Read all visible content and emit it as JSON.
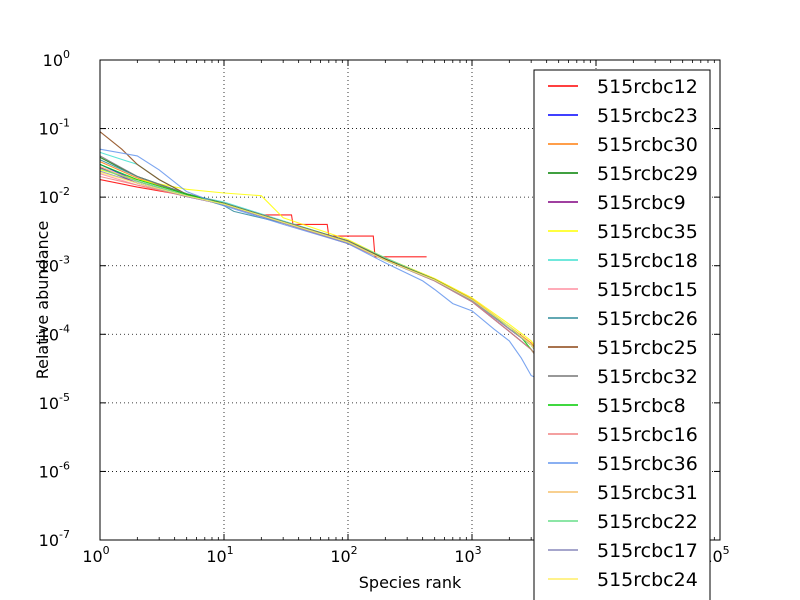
{
  "chart_data": {
    "type": "line",
    "title": "",
    "xlabel": "Species rank",
    "ylabel": "Relative abundance",
    "xscale": "log",
    "yscale": "log",
    "xlim": [
      1,
      100000
    ],
    "ylim": [
      1e-07,
      1
    ],
    "grid": true,
    "legend_position": "right",
    "x_ticks": [
      {
        "value": 1,
        "base": "10",
        "exp": "0"
      },
      {
        "value": 10,
        "base": "10",
        "exp": "1"
      },
      {
        "value": 100,
        "base": "10",
        "exp": "2"
      },
      {
        "value": 1000,
        "base": "10",
        "exp": "3"
      },
      {
        "value": 10000,
        "base": "10",
        "exp": "4"
      },
      {
        "value": 100000,
        "base": "10",
        "exp": "5"
      }
    ],
    "y_ticks": [
      {
        "value": 1,
        "base": "10",
        "exp": "0"
      },
      {
        "value": 0.1,
        "base": "10",
        "exp": "-1"
      },
      {
        "value": 0.01,
        "base": "10",
        "exp": "-2"
      },
      {
        "value": 0.001,
        "base": "10",
        "exp": "-3"
      },
      {
        "value": 0.0001,
        "base": "10",
        "exp": "-4"
      },
      {
        "value": 1e-05,
        "base": "10",
        "exp": "-5"
      },
      {
        "value": 1e-06,
        "base": "10",
        "exp": "-6"
      },
      {
        "value": 1e-07,
        "base": "10",
        "exp": "-7"
      }
    ],
    "series": [
      {
        "name": "515rcbc12",
        "color": "#ff0000",
        "points": [
          [
            1,
            0.018
          ],
          [
            2,
            0.014
          ],
          [
            5,
            0.0105
          ],
          [
            10,
            0.008
          ],
          [
            20,
            0.0055
          ],
          [
            35,
            0.0055
          ],
          [
            36,
            0.004
          ],
          [
            68,
            0.004
          ],
          [
            70,
            0.0027
          ],
          [
            160,
            0.0027
          ],
          [
            165,
            0.00135
          ],
          [
            430,
            0.00135
          ]
        ]
      },
      {
        "name": "515rcbc23",
        "color": "#0000ff",
        "points": [
          [
            1,
            0.03
          ],
          [
            2,
            0.017
          ],
          [
            5,
            0.0105
          ],
          [
            10,
            0.0078
          ],
          [
            30,
            0.0042
          ],
          [
            100,
            0.0022
          ],
          [
            200,
            0.0012
          ],
          [
            500,
            0.00062
          ],
          [
            1000,
            0.00031
          ],
          [
            2000,
            0.00012
          ],
          [
            3000,
            7e-05
          ],
          [
            4000,
            3.5e-05
          ],
          [
            4500,
            2.2e-05
          ]
        ]
      },
      {
        "name": "515rcbc30",
        "color": "#ff7f0e",
        "points": [
          [
            1,
            0.033
          ],
          [
            2,
            0.019
          ],
          [
            5,
            0.011
          ],
          [
            10,
            0.0081
          ],
          [
            30,
            0.0043
          ],
          [
            100,
            0.0023
          ],
          [
            200,
            0.0013
          ],
          [
            500,
            0.00064
          ],
          [
            1000,
            0.00033
          ],
          [
            2000,
            0.00013
          ],
          [
            3000,
            7.5e-05
          ],
          [
            4000,
            3.8e-05
          ],
          [
            4600,
            2.4e-05
          ]
        ]
      },
      {
        "name": "515rcbc29",
        "color": "#008000",
        "points": [
          [
            1,
            0.038
          ],
          [
            2,
            0.02
          ],
          [
            5,
            0.0112
          ],
          [
            10,
            0.0082
          ],
          [
            30,
            0.0044
          ],
          [
            100,
            0.0023
          ],
          [
            200,
            0.00125
          ],
          [
            500,
            0.00063
          ],
          [
            1000,
            0.00032
          ],
          [
            2000,
            0.00012
          ],
          [
            3000,
            7e-05
          ],
          [
            4000,
            3.6e-05
          ],
          [
            4800,
            2.3e-05
          ]
        ]
      },
      {
        "name": "515rcbc9",
        "color": "#800080",
        "points": [
          [
            1,
            0.027
          ],
          [
            2,
            0.016
          ],
          [
            5,
            0.0102
          ],
          [
            10,
            0.0078
          ],
          [
            30,
            0.0042
          ],
          [
            100,
            0.0021
          ],
          [
            200,
            0.0012
          ],
          [
            500,
            0.0006
          ],
          [
            1000,
            0.0003
          ],
          [
            2000,
            0.00011
          ],
          [
            3000,
            6e-05
          ],
          [
            4000,
            3e-05
          ],
          [
            4500,
            2e-05
          ]
        ]
      },
      {
        "name": "515rcbc35",
        "color": "#ffff00",
        "points": [
          [
            1,
            0.025
          ],
          [
            2,
            0.018
          ],
          [
            5,
            0.013
          ],
          [
            10,
            0.0115
          ],
          [
            20,
            0.0105
          ],
          [
            30,
            0.005
          ],
          [
            100,
            0.0024
          ],
          [
            200,
            0.0013
          ],
          [
            500,
            0.00065
          ],
          [
            1000,
            0.00034
          ],
          [
            2000,
            0.00014
          ],
          [
            3000,
            8e-05
          ],
          [
            4000,
            4e-05
          ],
          [
            4800,
            2.5e-05
          ]
        ]
      },
      {
        "name": "515rcbc18",
        "color": "#40e0d0",
        "points": [
          [
            1,
            0.045
          ],
          [
            2,
            0.03
          ],
          [
            3,
            0.018
          ],
          [
            5,
            0.011
          ],
          [
            10,
            0.0085
          ],
          [
            30,
            0.0045
          ],
          [
            100,
            0.0023
          ],
          [
            200,
            0.0013
          ],
          [
            500,
            0.00063
          ],
          [
            1000,
            0.00032
          ],
          [
            2000,
            0.00012
          ],
          [
            3000,
            7e-05
          ],
          [
            4000,
            3.5e-05
          ],
          [
            4500,
            2.2e-05
          ]
        ]
      },
      {
        "name": "515rcbc15",
        "color": "#ff8fa0",
        "points": [
          [
            1,
            0.022
          ],
          [
            2,
            0.015
          ],
          [
            5,
            0.0105
          ],
          [
            10,
            0.008
          ],
          [
            30,
            0.0043
          ],
          [
            100,
            0.0022
          ],
          [
            200,
            0.0012
          ],
          [
            500,
            0.00061
          ],
          [
            1000,
            0.00031
          ],
          [
            2000,
            0.00012
          ],
          [
            3000,
            7e-05
          ],
          [
            4000,
            3.4e-05
          ],
          [
            4500,
            2.1e-05
          ]
        ]
      },
      {
        "name": "515rcbc26",
        "color": "#2e8b9a",
        "points": [
          [
            1,
            0.035
          ],
          [
            2,
            0.02
          ],
          [
            5,
            0.011
          ],
          [
            10,
            0.0075
          ],
          [
            12,
            0.0062
          ],
          [
            30,
            0.0042
          ],
          [
            100,
            0.0022
          ],
          [
            200,
            0.0012
          ],
          [
            500,
            0.0006
          ],
          [
            1000,
            0.0003
          ],
          [
            2000,
            0.00011
          ],
          [
            3000,
            6e-05
          ],
          [
            4000,
            3e-05
          ],
          [
            4500,
            1.9e-05
          ]
        ]
      },
      {
        "name": "515rcbc25",
        "color": "#8b4513",
        "points": [
          [
            1,
            0.09
          ],
          [
            1.5,
            0.05
          ],
          [
            2,
            0.03
          ],
          [
            3,
            0.018
          ],
          [
            5,
            0.011
          ],
          [
            10,
            0.0082
          ],
          [
            30,
            0.0044
          ],
          [
            100,
            0.0023
          ],
          [
            200,
            0.00125
          ],
          [
            500,
            0.00063
          ],
          [
            1000,
            0.00032
          ],
          [
            2000,
            0.00012
          ],
          [
            3000,
            7e-05
          ],
          [
            4000,
            3.6e-05
          ],
          [
            4600,
            2.3e-05
          ]
        ]
      },
      {
        "name": "515rcbc32",
        "color": "#777777",
        "points": [
          [
            1,
            0.04
          ],
          [
            2,
            0.02
          ],
          [
            5,
            0.0112
          ],
          [
            10,
            0.0082
          ],
          [
            30,
            0.0044
          ],
          [
            100,
            0.0023
          ],
          [
            200,
            0.0012
          ],
          [
            500,
            0.00062
          ],
          [
            1000,
            0.00031
          ],
          [
            2000,
            0.00012
          ],
          [
            3000,
            7e-05
          ],
          [
            4000,
            3.5e-05
          ],
          [
            4500,
            2.2e-05
          ]
        ]
      },
      {
        "name": "515rcbc8",
        "color": "#00cc00",
        "points": [
          [
            1,
            0.03
          ],
          [
            2,
            0.018
          ],
          [
            5,
            0.011
          ],
          [
            10,
            0.008
          ],
          [
            30,
            0.0043
          ],
          [
            100,
            0.0022
          ],
          [
            200,
            0.0012
          ],
          [
            500,
            0.00062
          ],
          [
            1000,
            0.00031
          ],
          [
            2000,
            0.00013
          ],
          [
            2500,
            9e-05
          ],
          [
            3000,
            6e-05
          ],
          [
            4000,
            3e-05
          ],
          [
            4700,
            2.1e-05
          ]
        ]
      },
      {
        "name": "515rcbc16",
        "color": "#f08080",
        "points": [
          [
            1,
            0.02
          ],
          [
            2,
            0.015
          ],
          [
            5,
            0.0102
          ],
          [
            10,
            0.0079
          ],
          [
            30,
            0.0042
          ],
          [
            100,
            0.0021
          ],
          [
            200,
            0.0012
          ],
          [
            500,
            0.0006
          ],
          [
            1000,
            0.0003
          ],
          [
            2000,
            0.00011
          ],
          [
            3000,
            6e-05
          ],
          [
            4000,
            3e-05
          ],
          [
            4500,
            2e-05
          ]
        ]
      },
      {
        "name": "515rcbc36",
        "color": "#6495ed",
        "points": [
          [
            1,
            0.05
          ],
          [
            2,
            0.04
          ],
          [
            3,
            0.025
          ],
          [
            5,
            0.012
          ],
          [
            10,
            0.0075
          ],
          [
            30,
            0.004
          ],
          [
            100,
            0.0021
          ],
          [
            200,
            0.0011
          ],
          [
            400,
            0.0006
          ],
          [
            500,
            0.00045
          ],
          [
            700,
            0.00028
          ],
          [
            1000,
            0.00022
          ],
          [
            1500,
            0.00012
          ],
          [
            2000,
            8e-05
          ],
          [
            2500,
            4.5e-05
          ],
          [
            3000,
            2.5e-05
          ],
          [
            4000,
            2e-05
          ]
        ]
      },
      {
        "name": "515rcbc31",
        "color": "#f5c16c",
        "points": [
          [
            1,
            0.028
          ],
          [
            2,
            0.017
          ],
          [
            5,
            0.0105
          ],
          [
            10,
            0.0079
          ],
          [
            30,
            0.0043
          ],
          [
            100,
            0.0022
          ],
          [
            200,
            0.0012
          ],
          [
            500,
            0.00062
          ],
          [
            1000,
            0.00031
          ],
          [
            2000,
            0.00012
          ],
          [
            3000,
            7e-05
          ],
          [
            4000,
            3.4e-05
          ],
          [
            4500,
            2.1e-05
          ]
        ]
      },
      {
        "name": "515rcbc22",
        "color": "#66dd88",
        "points": [
          [
            1,
            0.026
          ],
          [
            2,
            0.017
          ],
          [
            5,
            0.0105
          ],
          [
            10,
            0.0079
          ],
          [
            30,
            0.0043
          ],
          [
            100,
            0.0022
          ],
          [
            200,
            0.0012
          ],
          [
            500,
            0.00062
          ],
          [
            1000,
            0.00031
          ],
          [
            2000,
            0.00013
          ],
          [
            3000,
            7e-05
          ],
          [
            4000,
            3.5e-05
          ],
          [
            4600,
            2.2e-05
          ]
        ]
      },
      {
        "name": "515rcbc17",
        "color": "#8888bb",
        "points": [
          [
            1,
            0.024
          ],
          [
            2,
            0.016
          ],
          [
            5,
            0.0102
          ],
          [
            10,
            0.0078
          ],
          [
            30,
            0.0042
          ],
          [
            100,
            0.0022
          ],
          [
            200,
            0.0012
          ],
          [
            500,
            0.00061
          ],
          [
            1000,
            0.00031
          ],
          [
            2000,
            0.00012
          ],
          [
            3000,
            7e-05
          ],
          [
            4000,
            3.4e-05
          ],
          [
            4500,
            2.1e-05
          ]
        ]
      },
      {
        "name": "515rcbc24",
        "color": "#ffee66",
        "points": [
          [
            1,
            0.023
          ],
          [
            2,
            0.016
          ],
          [
            5,
            0.0104
          ],
          [
            10,
            0.0079
          ],
          [
            30,
            0.0043
          ],
          [
            100,
            0.0022
          ],
          [
            200,
            0.0012
          ],
          [
            500,
            0.00062
          ],
          [
            1000,
            0.00032
          ],
          [
            2000,
            0.00013
          ],
          [
            3000,
            7e-05
          ],
          [
            4000,
            3.5e-05
          ],
          [
            4600,
            2.2e-05
          ]
        ]
      }
    ]
  }
}
